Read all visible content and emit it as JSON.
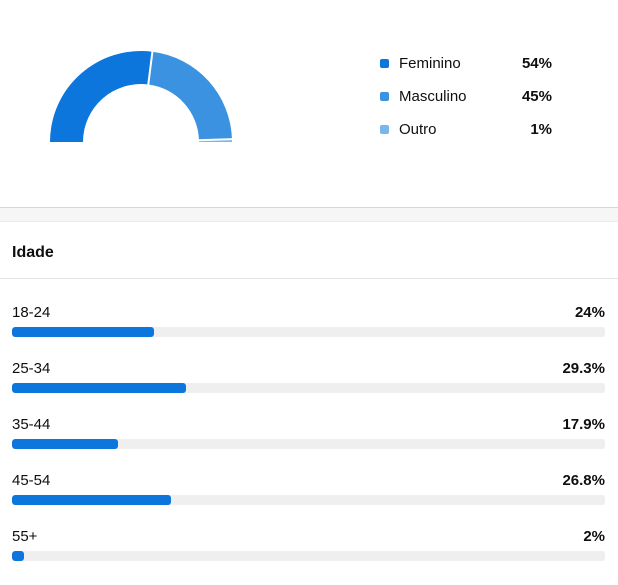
{
  "page": {
    "background": "#ffffff",
    "text_color": "#0f0f0f"
  },
  "chart_data": [
    {
      "type": "pie",
      "subtype": "half-donut",
      "title": "",
      "categories": [
        "Feminino",
        "Masculino",
        "Outro"
      ],
      "values": [
        54,
        45,
        1
      ],
      "value_labels": [
        "54%",
        "45%",
        "1%"
      ],
      "colors": [
        "#0d76dc",
        "#3b92e0",
        "#79b6ea"
      ],
      "legend_position": "right",
      "start_angle_deg": 180,
      "end_angle_deg": 0,
      "outer_radius": 91,
      "inner_radius": 58,
      "center": {
        "x": 141,
        "y": 142
      },
      "separator_color": "#ffffff"
    },
    {
      "type": "bar",
      "orientation": "horizontal",
      "title": "Idade",
      "categories": [
        "18-24",
        "25-34",
        "35-44",
        "45-54",
        "55+"
      ],
      "values": [
        24,
        29.3,
        17.9,
        26.8,
        2
      ],
      "value_labels": [
        "24%",
        "29.3%",
        "17.9%",
        "26.8%",
        "2%"
      ],
      "xlim": [
        0,
        100
      ],
      "bar_color": "#0d76dc",
      "track_color": "#efefef",
      "grid": false,
      "legend_position": "none"
    }
  ]
}
